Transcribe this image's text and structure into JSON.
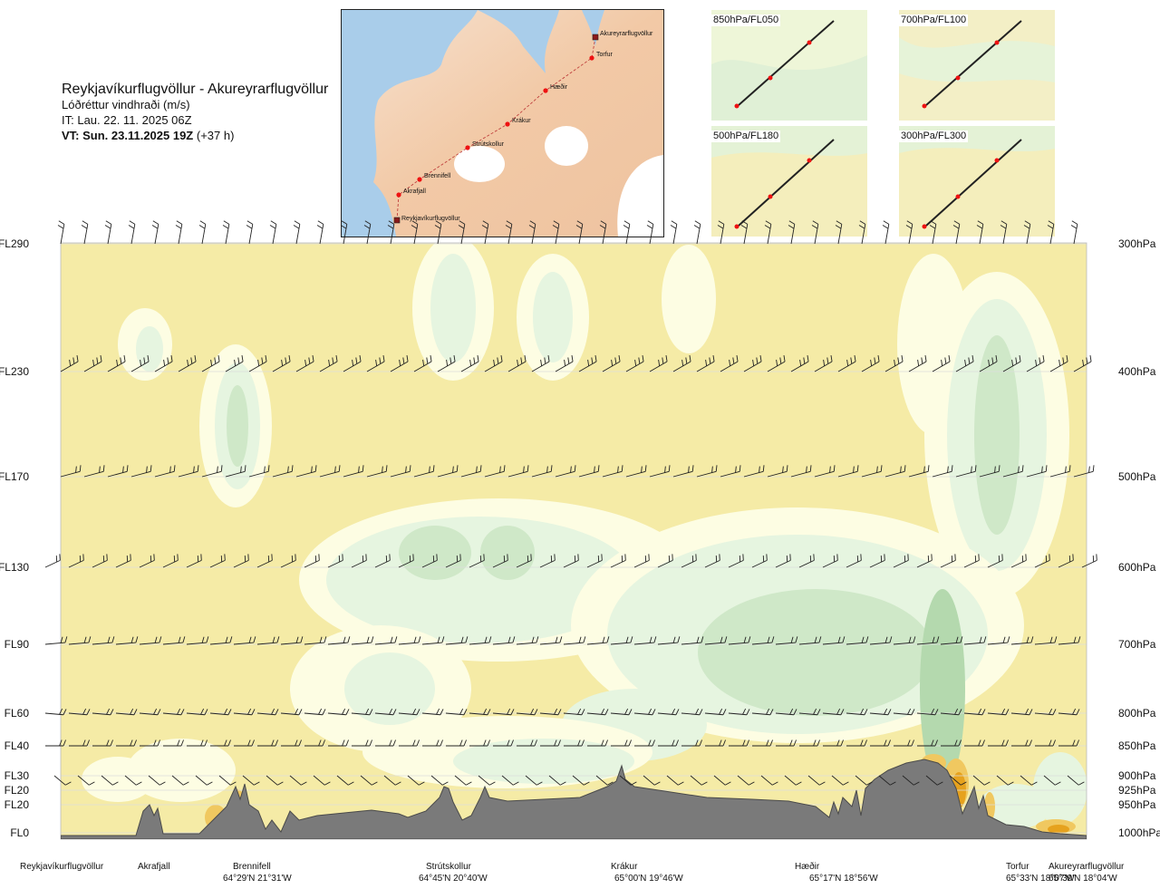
{
  "header": {
    "route": "Reykjavíkurflugvöllur - Akureyrarflugvöllur",
    "parameter": "Lóðréttur vindhraði (m/s)",
    "issue_time": "IT: Lau. 22. 11. 2025 06Z",
    "valid_time_label": "VT: Sun. 23.11.2025 19Z",
    "valid_offset": "(+37 h)"
  },
  "map": {
    "labels": [
      "Akureyrarflugvöllur",
      "Torfur",
      "Hæðir",
      "Krákur",
      "Strútskollur",
      "Brennifell",
      "Akrafjall",
      "Reykjavíkurflugvöllur"
    ]
  },
  "mini_maps": [
    {
      "label": "850hPa/FL050"
    },
    {
      "label": "700hPa/FL100"
    },
    {
      "label": "500hPa/FL180"
    },
    {
      "label": "300hPa/FL300"
    }
  ],
  "chart_data": {
    "type": "heatmap",
    "title": "Lóðréttur vindhraði (m/s)",
    "levels": [
      {
        "fl": "FL290",
        "hpa": "300hPa"
      },
      {
        "fl": "FL230",
        "hpa": "400hPa"
      },
      {
        "fl": "FL170",
        "hpa": "500hPa"
      },
      {
        "fl": "FL130",
        "hpa": "600hPa"
      },
      {
        "fl": "FL90",
        "hpa": "700hPa"
      },
      {
        "fl": "FL60",
        "hpa": "800hPa"
      },
      {
        "fl": "FL40",
        "hpa": "850hPa"
      },
      {
        "fl": "FL30",
        "hpa": "900hPa"
      },
      {
        "fl": "FL20",
        "hpa": "925hPa"
      },
      {
        "fl": "FL20",
        "hpa": "950hPa"
      },
      {
        "fl": "FL0",
        "hpa": "1000hPa"
      }
    ],
    "stations": [
      {
        "name": "Reykjavíkurflugvöllur",
        "coord": ""
      },
      {
        "name": "Akrafjall",
        "coord": ""
      },
      {
        "name": "Brennifell",
        "coord": "64°29'N 21°31'W"
      },
      {
        "name": "Strútskollur",
        "coord": "64°45'N 20°40'W"
      },
      {
        "name": "Krákur",
        "coord": "65°00'N 19°46'W"
      },
      {
        "name": "Hæðir",
        "coord": "65°17'N 18°56'W"
      },
      {
        "name": "Torfur",
        "coord": "65°33'N 18°07'W"
      },
      {
        "name": "Akureyrarflugvöllur",
        "coord": "65°39'N 18°04'W"
      }
    ],
    "colors": {
      "weak_down": "#f5eba6",
      "neutral": "#fdfde3",
      "weak_up": "#e6f5e0",
      "up": "#cfe8c8",
      "strong_up": "#b4d9ae",
      "strong_down": "#f0c860",
      "very_strong_down": "#e6a21e",
      "terrain": "#7a7a7a"
    }
  }
}
